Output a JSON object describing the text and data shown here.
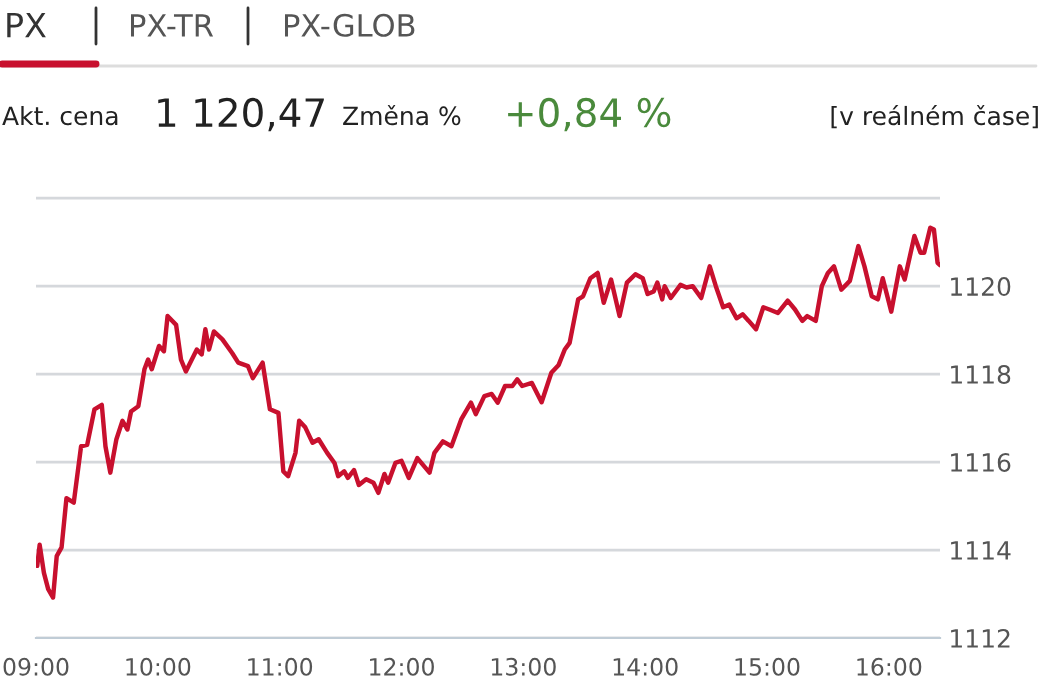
{
  "chart_data": {
    "type": "line",
    "annotations": [
      "PX",
      "PX-TR",
      "PX-GLOB",
      "Akt. cena",
      "1 120,47",
      "Změna %",
      "+0,84 %",
      "[v reálném čase]"
    ],
    "series": [
      {
        "color": "#c8102e",
        "x": [
          9.01,
          9.03,
          9.065,
          9.1,
          9.14,
          9.17,
          9.21,
          9.25,
          9.31,
          9.37,
          9.42,
          9.48,
          9.54,
          9.57,
          9.61,
          9.66,
          9.71,
          9.75,
          9.78,
          9.84,
          9.89,
          9.92,
          9.95,
          10.01,
          10.05,
          10.08,
          10.15,
          10.19,
          10.23,
          10.32,
          10.36,
          10.39,
          10.42,
          10.46,
          10.53,
          10.61,
          10.66,
          10.74,
          10.78,
          10.86,
          10.92,
          10.99,
          11.03,
          11.07,
          11.13,
          11.16,
          11.21,
          11.27,
          11.32,
          11.39,
          11.45,
          11.48,
          11.53,
          11.56,
          11.61,
          11.65,
          11.71,
          11.77,
          11.81,
          11.86,
          11.89,
          11.95,
          12.0,
          12.06,
          12.13,
          12.23,
          12.27,
          12.34,
          12.41,
          12.49,
          12.57,
          12.61,
          12.68,
          12.74,
          12.79,
          12.85,
          12.91,
          12.95,
          12.99,
          13.07,
          13.15,
          13.23,
          13.29,
          13.34,
          13.38,
          13.45,
          13.49,
          13.55,
          13.61,
          13.66,
          13.72,
          13.79,
          13.85,
          13.92,
          13.98,
          14.02,
          14.07,
          14.1,
          14.14,
          14.16,
          14.21,
          14.29,
          14.34,
          14.39,
          14.46,
          14.53,
          14.58,
          14.64,
          14.69,
          14.75,
          14.8,
          14.85,
          14.91,
          14.97,
          15.02,
          15.09,
          15.17,
          15.23,
          15.29,
          15.33,
          15.4,
          15.45,
          15.5,
          15.55,
          15.61,
          15.68,
          15.75,
          15.8,
          15.86,
          15.91,
          15.95,
          16.02,
          16.09,
          16.13,
          16.21,
          16.26,
          16.29,
          16.34,
          16.37,
          16.4,
          16.42
        ],
        "values": [
          1113.64,
          1114.12,
          1113.48,
          1113.11,
          1112.92,
          1113.86,
          1114.06,
          1115.18,
          1115.08,
          1116.36,
          1116.39,
          1117.2,
          1117.3,
          1116.36,
          1115.76,
          1116.52,
          1116.94,
          1116.74,
          1117.15,
          1117.27,
          1118.11,
          1118.33,
          1118.11,
          1118.64,
          1118.52,
          1119.32,
          1119.12,
          1118.33,
          1118.06,
          1118.56,
          1118.45,
          1119.02,
          1118.56,
          1118.97,
          1118.79,
          1118.48,
          1118.26,
          1118.18,
          1117.91,
          1118.26,
          1117.2,
          1117.12,
          1115.79,
          1115.68,
          1116.21,
          1116.94,
          1116.79,
          1116.44,
          1116.52,
          1116.21,
          1115.98,
          1115.68,
          1115.79,
          1115.64,
          1115.82,
          1115.48,
          1115.61,
          1115.53,
          1115.3,
          1115.73,
          1115.53,
          1115.98,
          1116.03,
          1115.64,
          1116.09,
          1115.76,
          1116.21,
          1116.47,
          1116.36,
          1116.97,
          1117.35,
          1117.09,
          1117.5,
          1117.55,
          1117.35,
          1117.73,
          1117.73,
          1117.88,
          1117.73,
          1117.8,
          1117.36,
          1118.03,
          1118.21,
          1118.56,
          1118.71,
          1119.7,
          1119.77,
          1120.18,
          1120.3,
          1119.62,
          1120.15,
          1119.32,
          1120.08,
          1120.27,
          1120.18,
          1119.82,
          1119.88,
          1120.08,
          1119.7,
          1120.0,
          1119.73,
          1120.03,
          1119.97,
          1120.0,
          1119.73,
          1120.45,
          1120.0,
          1119.52,
          1119.58,
          1119.27,
          1119.36,
          1119.21,
          1119.02,
          1119.52,
          1119.47,
          1119.39,
          1119.67,
          1119.47,
          1119.21,
          1119.32,
          1119.21,
          1120.0,
          1120.3,
          1120.45,
          1119.92,
          1120.12,
          1120.91,
          1120.45,
          1119.77,
          1119.7,
          1120.18,
          1119.42,
          1120.45,
          1120.15,
          1121.14,
          1120.76,
          1120.76,
          1121.33,
          1121.29,
          1120.53,
          1120.48
        ]
      }
    ],
    "xlim": [
      9,
      16.42
    ],
    "xticks": [
      {
        "value": 9,
        "label": "09:00"
      },
      {
        "value": 10,
        "label": "10:00"
      },
      {
        "value": 11,
        "label": "11:00"
      },
      {
        "value": 12,
        "label": "12:00"
      },
      {
        "value": 13,
        "label": "13:00"
      },
      {
        "value": 14,
        "label": "14:00"
      },
      {
        "value": 15,
        "label": "15:00"
      },
      {
        "value": 16,
        "label": "16:00"
      }
    ],
    "ylim": [
      1112,
      1122.05
    ],
    "yticks": [
      1112,
      1114,
      1116,
      1118,
      1120,
      {
        "value": 1122,
        "label": null
      }
    ],
    "grid": "y",
    "legend": false,
    "marker": "none",
    "line_style": "solid"
  }
}
